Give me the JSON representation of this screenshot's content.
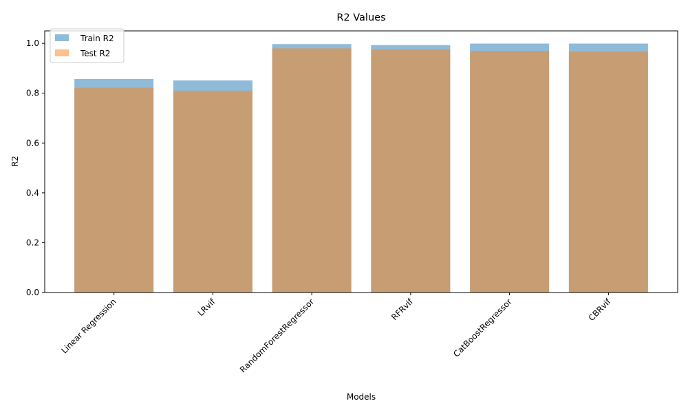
{
  "chart_data": {
    "type": "bar",
    "title": "R2 Values",
    "xlabel": "Models",
    "ylabel": "R2",
    "categories": [
      "Linear Regression",
      "LRvif",
      "RandomForestRegressor",
      "RFRvif",
      "CatBoostRegressor",
      "CBRvif"
    ],
    "series": [
      {
        "name": "Train R2",
        "values": [
          0.857,
          0.851,
          0.997,
          0.993,
          0.999,
          0.999
        ],
        "color": "#1f77b4",
        "opacity": 0.5
      },
      {
        "name": "Test R2",
        "values": [
          0.822,
          0.81,
          0.98,
          0.976,
          0.97,
          0.967
        ],
        "color": "#ff7f0e",
        "opacity": 0.5
      }
    ],
    "ylim": [
      0,
      1.05
    ],
    "yticks": [
      "0.0",
      "0.2",
      "0.4",
      "0.6",
      "0.8",
      "1.0"
    ],
    "grid": false,
    "legend_position": "top-left",
    "overlay": true
  }
}
